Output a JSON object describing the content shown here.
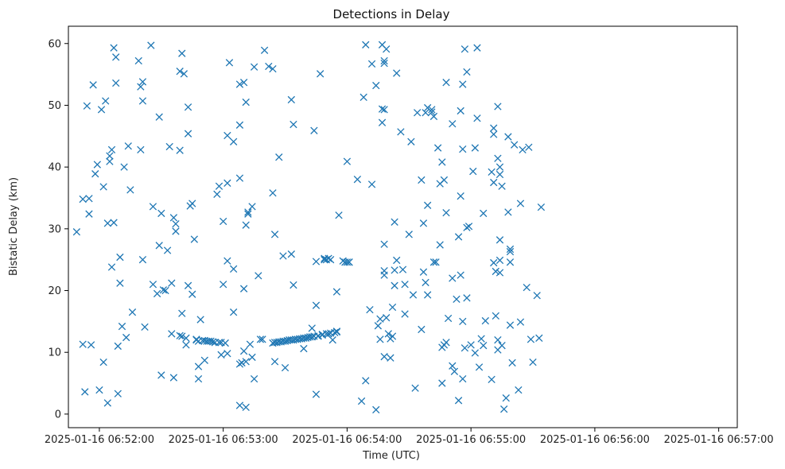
{
  "chart_data": {
    "type": "scatter",
    "title": "Detections in Delay",
    "xlabel": "Time (UTC)",
    "ylabel": "Bistatic Delay (km)",
    "x_unit": "seconds after 2025-01-16 06:51:00",
    "xlim": [
      "2025-01-16 06:51:45",
      "2025-01-16 06:57:09"
    ],
    "ylim": [
      -2.2,
      62.8
    ],
    "x_ticks": [
      "2025-01-16 06:52:00",
      "2025-01-16 06:53:00",
      "2025-01-16 06:54:00",
      "2025-01-16 06:55:00",
      "2025-01-16 06:56:00",
      "2025-01-16 06:57:00"
    ],
    "y_ticks": [
      0,
      10,
      20,
      30,
      40,
      50,
      60
    ],
    "grid": false,
    "marker": "x",
    "color": "#1f77b4",
    "points": [
      [
        49,
        29.5
      ],
      [
        52,
        34.8
      ],
      [
        52,
        11.3
      ],
      [
        53,
        3.6
      ],
      [
        54,
        49.9
      ],
      [
        55,
        32.4
      ],
      [
        55,
        34.9
      ],
      [
        56,
        11.2
      ],
      [
        57,
        53.3
      ],
      [
        58,
        38.9
      ],
      [
        59,
        40.4
      ],
      [
        60,
        3.9
      ],
      [
        61,
        49.3
      ],
      [
        62,
        36.8
      ],
      [
        62,
        8.4
      ],
      [
        63,
        50.7
      ],
      [
        64,
        30.9
      ],
      [
        64,
        1.8
      ],
      [
        65,
        40.9
      ],
      [
        65,
        41.8
      ],
      [
        66,
        23.8
      ],
      [
        66,
        42.8
      ],
      [
        67,
        59.3
      ],
      [
        67,
        31
      ],
      [
        68,
        57.8
      ],
      [
        68,
        53.6
      ],
      [
        69,
        3.3
      ],
      [
        69,
        11
      ],
      [
        70,
        25.4
      ],
      [
        70,
        21.2
      ],
      [
        71,
        14.2
      ],
      [
        72,
        40
      ],
      [
        73,
        12.4
      ],
      [
        74,
        43.4
      ],
      [
        75,
        36.3
      ],
      [
        76,
        16.5
      ],
      [
        79,
        57.2
      ],
      [
        80,
        53
      ],
      [
        80,
        42.8
      ],
      [
        81,
        53.8
      ],
      [
        81,
        50.7
      ],
      [
        81,
        25
      ],
      [
        82,
        14.1
      ],
      [
        85,
        59.7
      ],
      [
        86,
        21
      ],
      [
        86,
        33.6
      ],
      [
        88,
        19.5
      ],
      [
        89,
        48.1
      ],
      [
        89,
        27.3
      ],
      [
        90,
        32.5
      ],
      [
        90,
        6.3
      ],
      [
        91,
        20.1
      ],
      [
        92,
        20
      ],
      [
        93,
        26.5
      ],
      [
        94,
        43.3
      ],
      [
        95,
        13
      ],
      [
        95,
        21.2
      ],
      [
        96,
        31.8
      ],
      [
        96,
        5.9
      ],
      [
        97,
        29.6
      ],
      [
        97,
        30.8
      ],
      [
        99,
        12.7
      ],
      [
        99,
        42.7
      ],
      [
        99,
        55.5
      ],
      [
        100,
        12.6
      ],
      [
        100,
        16.3
      ],
      [
        100,
        58.4
      ],
      [
        101,
        55.1
      ],
      [
        102,
        11.2
      ],
      [
        102,
        12.3
      ],
      [
        103,
        49.7
      ],
      [
        103,
        45.4
      ],
      [
        103,
        20.8
      ],
      [
        104,
        33.7
      ],
      [
        105,
        19.4
      ],
      [
        105,
        34.1
      ],
      [
        106,
        28.3
      ],
      [
        107,
        12
      ],
      [
        107,
        12.1
      ],
      [
        108,
        5.7
      ],
      [
        108,
        7.7
      ],
      [
        108,
        11.8
      ],
      [
        109,
        15.3
      ],
      [
        110,
        11.9
      ],
      [
        111,
        11.9
      ],
      [
        111,
        8.7
      ],
      [
        112,
        11.8
      ],
      [
        113,
        11.8
      ],
      [
        114,
        11.8
      ],
      [
        115,
        11.7
      ],
      [
        116,
        11.6
      ],
      [
        117,
        35.6
      ],
      [
        118,
        11.6
      ],
      [
        118,
        36.9
      ],
      [
        119,
        11.6
      ],
      [
        119,
        9.6
      ],
      [
        120,
        21
      ],
      [
        120,
        31.2
      ],
      [
        121,
        11.5
      ],
      [
        122,
        9.8
      ],
      [
        122,
        45.1
      ],
      [
        122,
        37.4
      ],
      [
        122,
        24.8
      ],
      [
        123,
        56.9
      ],
      [
        125,
        44.1
      ],
      [
        125,
        23.5
      ],
      [
        125,
        16.5
      ],
      [
        128,
        1.4
      ],
      [
        128,
        8.1
      ],
      [
        128,
        53.4
      ],
      [
        128,
        38.2
      ],
      [
        128,
        46.8
      ],
      [
        129,
        8.3
      ],
      [
        130,
        10.2
      ],
      [
        130,
        20.3
      ],
      [
        130,
        53.7
      ],
      [
        131,
        30.6
      ],
      [
        131,
        1.1
      ],
      [
        131,
        8.5
      ],
      [
        131,
        50.5
      ],
      [
        132,
        32.4
      ],
      [
        132,
        32.7
      ],
      [
        133,
        11.3
      ],
      [
        134,
        33.6
      ],
      [
        134,
        9.2
      ],
      [
        135,
        56.2
      ],
      [
        135,
        5.7
      ],
      [
        137,
        22.4
      ],
      [
        138,
        12.1
      ],
      [
        139,
        12.1
      ],
      [
        140,
        58.9
      ],
      [
        142,
        56.3
      ],
      [
        144,
        11.5
      ],
      [
        144,
        55.9
      ],
      [
        144,
        35.8
      ],
      [
        145,
        11.6
      ],
      [
        145,
        29.1
      ],
      [
        145,
        8.5
      ],
      [
        146,
        11.6
      ],
      [
        147,
        11.7
      ],
      [
        147,
        41.6
      ],
      [
        148,
        11.7
      ],
      [
        149,
        11.8
      ],
      [
        149,
        25.6
      ],
      [
        150,
        11.8
      ],
      [
        150,
        7.5
      ],
      [
        151,
        11.9
      ],
      [
        152,
        12
      ],
      [
        153,
        12
      ],
      [
        153,
        25.9
      ],
      [
        153,
        50.9
      ],
      [
        154,
        20.9
      ],
      [
        154,
        12
      ],
      [
        154,
        46.9
      ],
      [
        155,
        12.1
      ],
      [
        156,
        12.1
      ],
      [
        157,
        12.2
      ],
      [
        158,
        12.2
      ],
      [
        159,
        12.3
      ],
      [
        159,
        10.6
      ],
      [
        160,
        12.3
      ],
      [
        161,
        12.4
      ],
      [
        162,
        12.5
      ],
      [
        163,
        12.5
      ],
      [
        163,
        13.9
      ],
      [
        164,
        12.6
      ],
      [
        164,
        45.9
      ],
      [
        165,
        24.7
      ],
      [
        165,
        17.6
      ],
      [
        165,
        3.2
      ],
      [
        166,
        12.6
      ],
      [
        166,
        12.7
      ],
      [
        167,
        55.1
      ],
      [
        168,
        12.8
      ],
      [
        168,
        12.9
      ],
      [
        169,
        25.2
      ],
      [
        169,
        25
      ],
      [
        170,
        13
      ],
      [
        170,
        25
      ],
      [
        171,
        25.2
      ],
      [
        171,
        13
      ],
      [
        172,
        13.1
      ],
      [
        172,
        25
      ],
      [
        173,
        12
      ],
      [
        174,
        13.2
      ],
      [
        175,
        19.8
      ],
      [
        175,
        13.3
      ],
      [
        175,
        13.4
      ],
      [
        176,
        32.2
      ],
      [
        178,
        24.8
      ],
      [
        179,
        24.6
      ],
      [
        180,
        24.6
      ],
      [
        180,
        40.9
      ],
      [
        181,
        24.6
      ],
      [
        181,
        24.6
      ],
      [
        185,
        38
      ],
      [
        187,
        2.1
      ],
      [
        188,
        51.3
      ],
      [
        189,
        59.8
      ],
      [
        189,
        5.4
      ],
      [
        191,
        16.9
      ],
      [
        192,
        37.2
      ],
      [
        192,
        56.7
      ],
      [
        194,
        53.2
      ],
      [
        194,
        0.7
      ],
      [
        195,
        14.3
      ],
      [
        196,
        15.4
      ],
      [
        196,
        12.1
      ],
      [
        197,
        47.2
      ],
      [
        197,
        49.4
      ],
      [
        197,
        59.8
      ],
      [
        198,
        49.3
      ],
      [
        198,
        9.3
      ],
      [
        198,
        27.5
      ],
      [
        198,
        22.5
      ],
      [
        198,
        23.2
      ],
      [
        198,
        57.2
      ],
      [
        198,
        56.8
      ],
      [
        199,
        59.1
      ],
      [
        199,
        15.6
      ],
      [
        200,
        13
      ],
      [
        201,
        9.1
      ],
      [
        201,
        12.2
      ],
      [
        202,
        12.6
      ],
      [
        202,
        17.3
      ],
      [
        203,
        31.1
      ],
      [
        203,
        23.3
      ],
      [
        203,
        20.8
      ],
      [
        204,
        55.2
      ],
      [
        204,
        24.9
      ],
      [
        206,
        45.7
      ],
      [
        207,
        23.4
      ],
      [
        208,
        21
      ],
      [
        208,
        16.2
      ],
      [
        210,
        29.1
      ],
      [
        211,
        44.1
      ],
      [
        212,
        19.3
      ],
      [
        213,
        4.2
      ],
      [
        214,
        48.8
      ],
      [
        216,
        37.9
      ],
      [
        216,
        13.7
      ],
      [
        217,
        30.9
      ],
      [
        217,
        23
      ],
      [
        218,
        48.8
      ],
      [
        218,
        21.3
      ],
      [
        219,
        19.3
      ],
      [
        219,
        33.8
      ],
      [
        219,
        49.6
      ],
      [
        221,
        49.3
      ],
      [
        221,
        48.9
      ],
      [
        222,
        48.2
      ],
      [
        222,
        24.6
      ],
      [
        223,
        24.6
      ],
      [
        224,
        43.1
      ],
      [
        225,
        27.4
      ],
      [
        225,
        37.3
      ],
      [
        226,
        40.8
      ],
      [
        226,
        5
      ],
      [
        226,
        10.8
      ],
      [
        227,
        11.2
      ],
      [
        227,
        37.9
      ],
      [
        228,
        11.6
      ],
      [
        228,
        53.7
      ],
      [
        228,
        32.6
      ],
      [
        229,
        15.5
      ],
      [
        231,
        7.8
      ],
      [
        231,
        47
      ],
      [
        231,
        22
      ],
      [
        232,
        6.9
      ],
      [
        233,
        18.6
      ],
      [
        234,
        2.2
      ],
      [
        234,
        28.7
      ],
      [
        235,
        49.1
      ],
      [
        235,
        35.3
      ],
      [
        235,
        22.5
      ],
      [
        236,
        5.7
      ],
      [
        236,
        42.9
      ],
      [
        236,
        53.4
      ],
      [
        236,
        15
      ],
      [
        237,
        59.1
      ],
      [
        237,
        10.7
      ],
      [
        238,
        55.4
      ],
      [
        238,
        18.8
      ],
      [
        238,
        30.2
      ],
      [
        239,
        30.4
      ],
      [
        240,
        11.2
      ],
      [
        241,
        39.3
      ],
      [
        242,
        9.9
      ],
      [
        242,
        43.1
      ],
      [
        243,
        59.3
      ],
      [
        243,
        47.9
      ],
      [
        244,
        7.6
      ],
      [
        245,
        12.2
      ],
      [
        246,
        32.5
      ],
      [
        246,
        11.1
      ],
      [
        247,
        15.1
      ],
      [
        250,
        39.2
      ],
      [
        250,
        5.6
      ],
      [
        251,
        46.3
      ],
      [
        251,
        45.3
      ],
      [
        251,
        24.5
      ],
      [
        251,
        37.5
      ],
      [
        252,
        15.9
      ],
      [
        252,
        23.1
      ],
      [
        253,
        12
      ],
      [
        253,
        41.4
      ],
      [
        253,
        49.8
      ],
      [
        253,
        10.4
      ],
      [
        254,
        24.9
      ],
      [
        254,
        38.8
      ],
      [
        254,
        40
      ],
      [
        255,
        36.9
      ],
      [
        254,
        22.9
      ],
      [
        254,
        28.2
      ],
      [
        255,
        11.1
      ],
      [
        256,
        0.8
      ],
      [
        257,
        2.6
      ],
      [
        258,
        32.7
      ],
      [
        258,
        44.9
      ],
      [
        259,
        26.7
      ],
      [
        259,
        26.3
      ],
      [
        259,
        24.6
      ],
      [
        259,
        14.4
      ],
      [
        260,
        8.3
      ],
      [
        261,
        43.6
      ],
      [
        263,
        3.9
      ],
      [
        264,
        34.1
      ],
      [
        264,
        14.9
      ],
      [
        265,
        42.8
      ],
      [
        267,
        20.5
      ],
      [
        268,
        43.2
      ],
      [
        269,
        12.1
      ],
      [
        270,
        8.4
      ],
      [
        272,
        19.2
      ],
      [
        273,
        12.3
      ],
      [
        274,
        33.5
      ]
    ]
  }
}
